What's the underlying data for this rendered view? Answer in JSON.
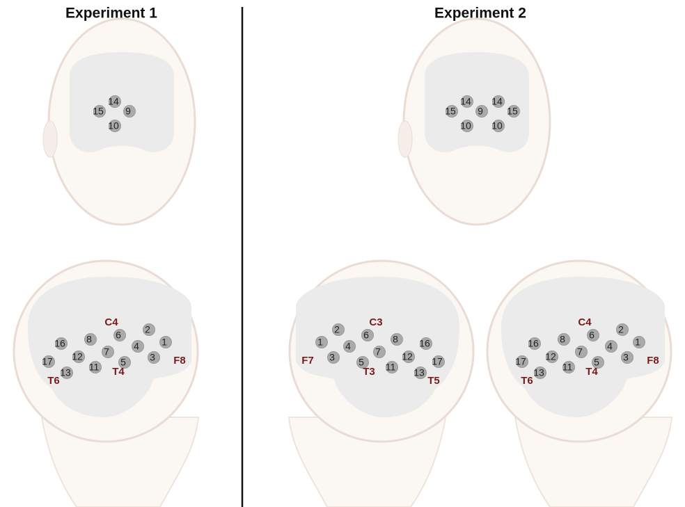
{
  "panels": [
    {
      "title": "Experiment 1",
      "heads": [
        {
          "electrodes": [
            "14",
            "15",
            "9",
            "10"
          ]
        },
        {
          "electrodes": [
            "16",
            "8",
            "6",
            "2",
            "1",
            "4",
            "7",
            "12",
            "17",
            "13",
            "11",
            "5",
            "3"
          ],
          "sites": [
            "C4",
            "F8",
            "T4",
            "T6"
          ]
        }
      ]
    },
    {
      "title": "Experiment 2",
      "heads": [
        {
          "electrodes": [
            "14",
            "15",
            "9",
            "10",
            "14",
            "15",
            "10"
          ]
        },
        {
          "electrodes": [
            "16",
            "8",
            "6",
            "2",
            "1",
            "4",
            "7",
            "12",
            "17",
            "13",
            "11",
            "5",
            "3"
          ],
          "sites": [
            "C3",
            "F7",
            "T3",
            "T5"
          ]
        },
        {
          "electrodes": [
            "16",
            "8",
            "6",
            "2",
            "1",
            "4",
            "7",
            "12",
            "17",
            "13",
            "11",
            "5",
            "3"
          ],
          "sites": [
            "C4",
            "F8",
            "T4",
            "T6"
          ]
        }
      ]
    }
  ]
}
